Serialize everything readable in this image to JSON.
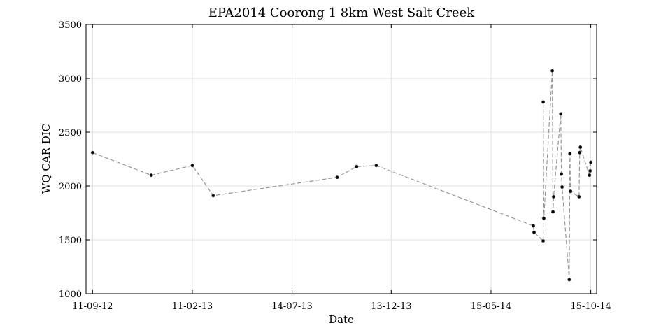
{
  "chart_data": {
    "type": "line",
    "title": "EPA2014 Coorong 1 8km West Salt Creek",
    "xlabel": "Date",
    "ylabel": "WQ CAR DIC",
    "ylim": [
      1000,
      3500
    ],
    "yticks": [
      1000,
      1500,
      2000,
      2500,
      3000,
      3500
    ],
    "xlim": [
      "2012-09-01",
      "2014-10-24"
    ],
    "xticks": [
      {
        "date": "2012-09-11",
        "label": "11-09-12"
      },
      {
        "date": "2013-02-11",
        "label": "11-02-13"
      },
      {
        "date": "2013-07-14",
        "label": "14-07-13"
      },
      {
        "date": "2013-12-13",
        "label": "13-12-13"
      },
      {
        "date": "2014-05-15",
        "label": "15-05-14"
      },
      {
        "date": "2014-10-15",
        "label": "15-10-14"
      }
    ],
    "grid": true,
    "series": [
      {
        "color": "#999999",
        "marker_color": "#000000",
        "points": [
          {
            "x": "2012-09-11",
            "y": 2310
          },
          {
            "x": "2012-12-10",
            "y": 2100
          },
          {
            "x": "2013-02-11",
            "y": 2190
          },
          {
            "x": "2013-03-15",
            "y": 1910
          },
          {
            "x": "2013-09-21",
            "y": 2080
          },
          {
            "x": "2013-10-21",
            "y": 2180
          },
          {
            "x": "2013-11-20",
            "y": 2190
          },
          {
            "x": "2014-07-19",
            "y": 1630
          },
          {
            "x": "2014-07-20",
            "y": 1570
          },
          {
            "x": "2014-08-03",
            "y": 1490
          },
          {
            "x": "2014-08-03",
            "y": 2780
          },
          {
            "x": "2014-08-04",
            "y": 1700
          },
          {
            "x": "2014-08-17",
            "y": 3070
          },
          {
            "x": "2014-08-18",
            "y": 1760
          },
          {
            "x": "2014-08-19",
            "y": 1900
          },
          {
            "x": "2014-08-30",
            "y": 2670
          },
          {
            "x": "2014-08-31",
            "y": 2110
          },
          {
            "x": "2014-09-01",
            "y": 1990
          },
          {
            "x": "2014-09-12",
            "y": 1130
          },
          {
            "x": "2014-09-13",
            "y": 2300
          },
          {
            "x": "2014-09-14",
            "y": 1950
          },
          {
            "x": "2014-09-27",
            "y": 1900
          },
          {
            "x": "2014-09-28",
            "y": 2310
          },
          {
            "x": "2014-09-29",
            "y": 2360
          },
          {
            "x": "2014-10-13",
            "y": 2100
          },
          {
            "x": "2014-10-14",
            "y": 2140
          },
          {
            "x": "2014-10-15",
            "y": 2220
          }
        ]
      }
    ]
  }
}
